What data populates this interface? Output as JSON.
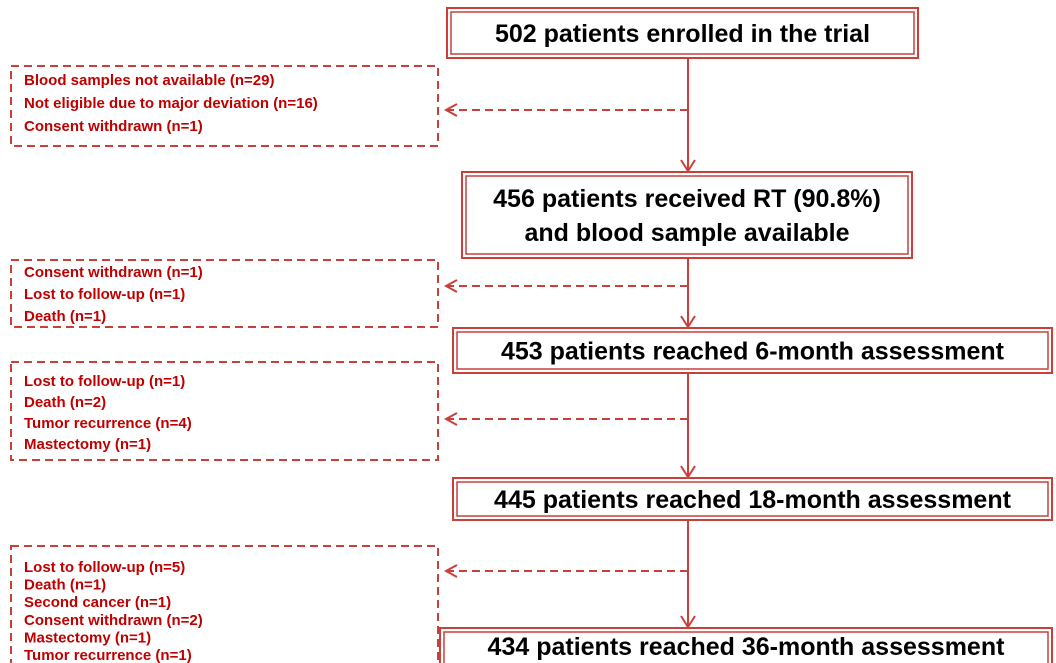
{
  "nodes": [
    {
      "lines": [
        "502 patients enrolled in the trial"
      ]
    },
    {
      "lines": [
        "456 patients received RT (90.8%)",
        "and blood sample available"
      ]
    },
    {
      "lines": [
        "453 patients reached 6-month assessment"
      ]
    },
    {
      "lines": [
        "445 patients reached 18-month assessment"
      ]
    },
    {
      "lines": [
        "434 patients reached 36-month assessment"
      ]
    }
  ],
  "exclusions": [
    {
      "items": [
        "Blood samples not available (n=29)",
        "Not eligible due to major deviation (n=16)",
        "Consent withdrawn (n=1)"
      ]
    },
    {
      "items": [
        "Consent withdrawn (n=1)",
        "Lost to follow-up (n=1)",
        "Death (n=1)"
      ]
    },
    {
      "items": [
        "Lost to follow-up (n=1)",
        "Death (n=2)",
        "Tumor recurrence (n=4)",
        "Mastectomy (n=1)"
      ]
    },
    {
      "items": [
        "Lost to follow-up (n=5)",
        "Death (n=1)",
        "Second cancer (n=1)",
        "Consent withdrawn (n=2)",
        "Mastectomy (n=1)",
        "Tumor recurrence (n=1)"
      ]
    }
  ]
}
